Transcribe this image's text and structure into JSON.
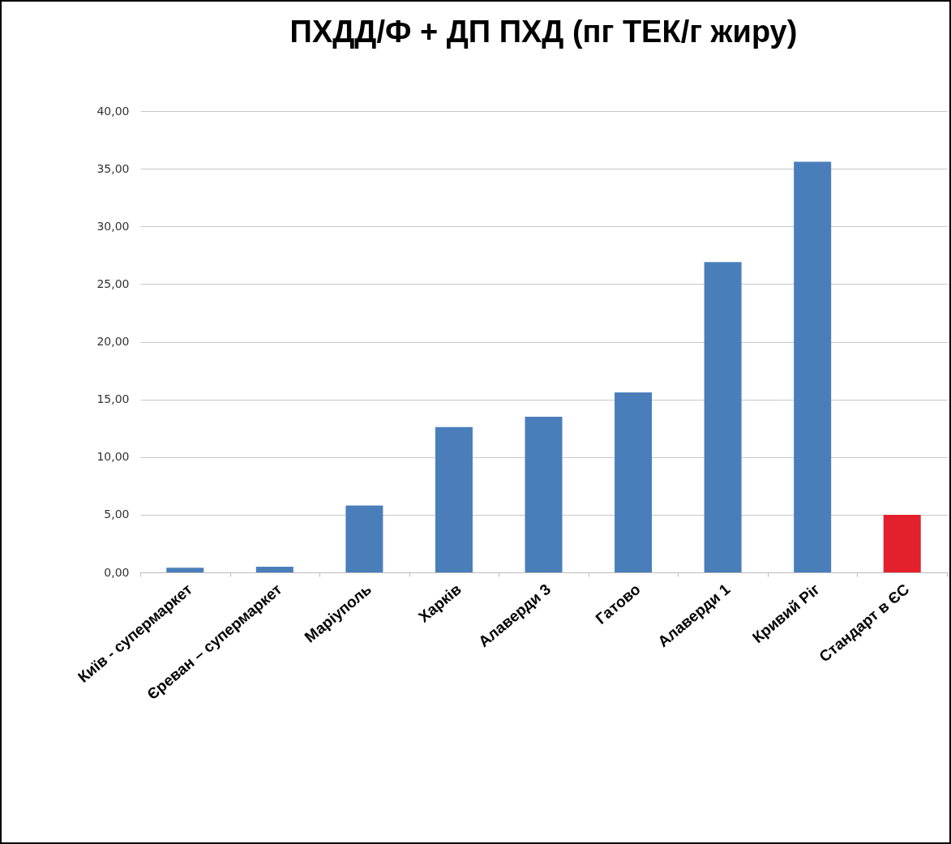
{
  "chart_data": {
    "type": "bar",
    "title": "ПХДД/Ф + ДП ПХД (пг ТЕК/г жиру)",
    "categories": [
      "Київ - супермаркет",
      "Єреван – супермаркет",
      "Маріуполь",
      "Харків",
      "Алаверди 3",
      "Гатово",
      "Алаверди 1",
      "Кривий Ріг",
      "Стандарт в ЄС"
    ],
    "values": [
      0.4,
      0.5,
      5.8,
      12.6,
      13.5,
      15.6,
      26.9,
      35.6,
      5.0
    ],
    "colors": [
      "#4a7ebb",
      "#4a7ebb",
      "#4a7ebb",
      "#4a7ebb",
      "#4a7ebb",
      "#4a7ebb",
      "#4a7ebb",
      "#4a7ebb",
      "#e3202b"
    ],
    "ylim": [
      0,
      40
    ],
    "yticks": [
      {
        "value": 0,
        "label": "0,00"
      },
      {
        "value": 5,
        "label": "5,00"
      },
      {
        "value": 10,
        "label": "10,00"
      },
      {
        "value": 15,
        "label": "15,00"
      },
      {
        "value": 20,
        "label": "20,00"
      },
      {
        "value": 25,
        "label": "25,00"
      },
      {
        "value": 30,
        "label": "30,00"
      },
      {
        "value": 35,
        "label": "35,00"
      },
      {
        "value": 40,
        "label": "40,00"
      }
    ],
    "grid": "y"
  }
}
